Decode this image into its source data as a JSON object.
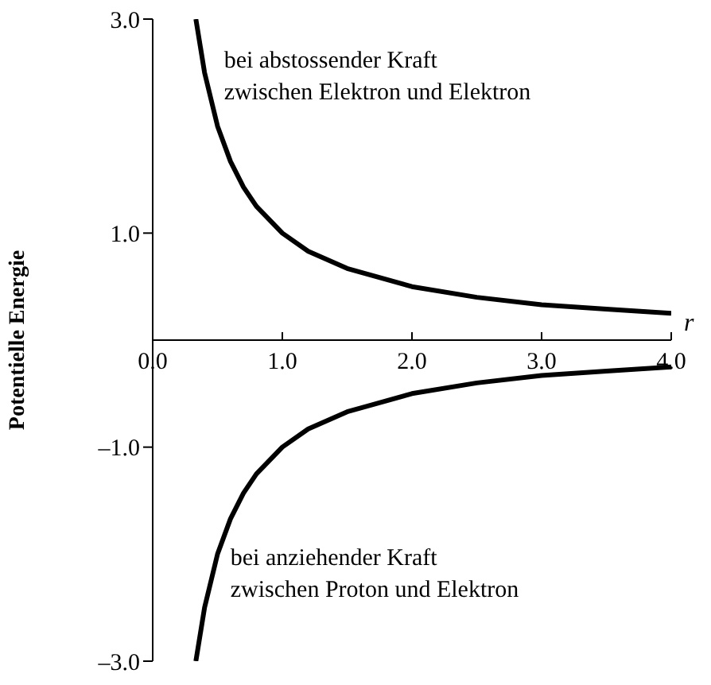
{
  "chart_data": {
    "type": "line",
    "xlabel": "r",
    "ylabel": "Potentielle Energie",
    "xlim": [
      0,
      4
    ],
    "xticks": [
      {
        "value": 0,
        "label": "0.0"
      },
      {
        "value": 1,
        "label": "1.0"
      },
      {
        "value": 2,
        "label": "2.0"
      },
      {
        "value": 3,
        "label": "3.0"
      },
      {
        "value": 4,
        "label": "4.0"
      }
    ],
    "ylim": [
      -3,
      3
    ],
    "yticks": [
      {
        "value": 3,
        "label": "3.0"
      },
      {
        "value": 1,
        "label": "1.0"
      },
      {
        "value": -1,
        "label": "–1.0"
      },
      {
        "value": -3,
        "label": "–3.0"
      }
    ],
    "x": [
      0.333,
      0.4,
      0.5,
      0.6,
      0.7,
      0.8,
      1,
      1.2,
      1.5,
      2,
      2.5,
      3,
      3.5,
      4
    ],
    "series": [
      {
        "color": "#000000",
        "values": [
          3.0,
          2.5,
          2.0,
          1.67,
          1.43,
          1.25,
          1.0,
          0.83,
          0.67,
          0.5,
          0.4,
          0.33,
          0.29,
          0.25
        ]
      },
      {
        "color": "#000000",
        "values": [
          -3.0,
          -2.5,
          -2.0,
          -1.67,
          -1.43,
          -1.25,
          -1.0,
          -0.83,
          -0.67,
          -0.5,
          -0.4,
          -0.33,
          -0.29,
          -0.25
        ]
      }
    ],
    "annotations": [
      "bei abstossender Kraft\nzwischen Elektron und Elektron",
      "bei anziehender Kraft\nzwischen Proton und Elektron"
    ],
    "grid": false,
    "legend": false,
    "marker": "none",
    "line_style": "solid"
  }
}
